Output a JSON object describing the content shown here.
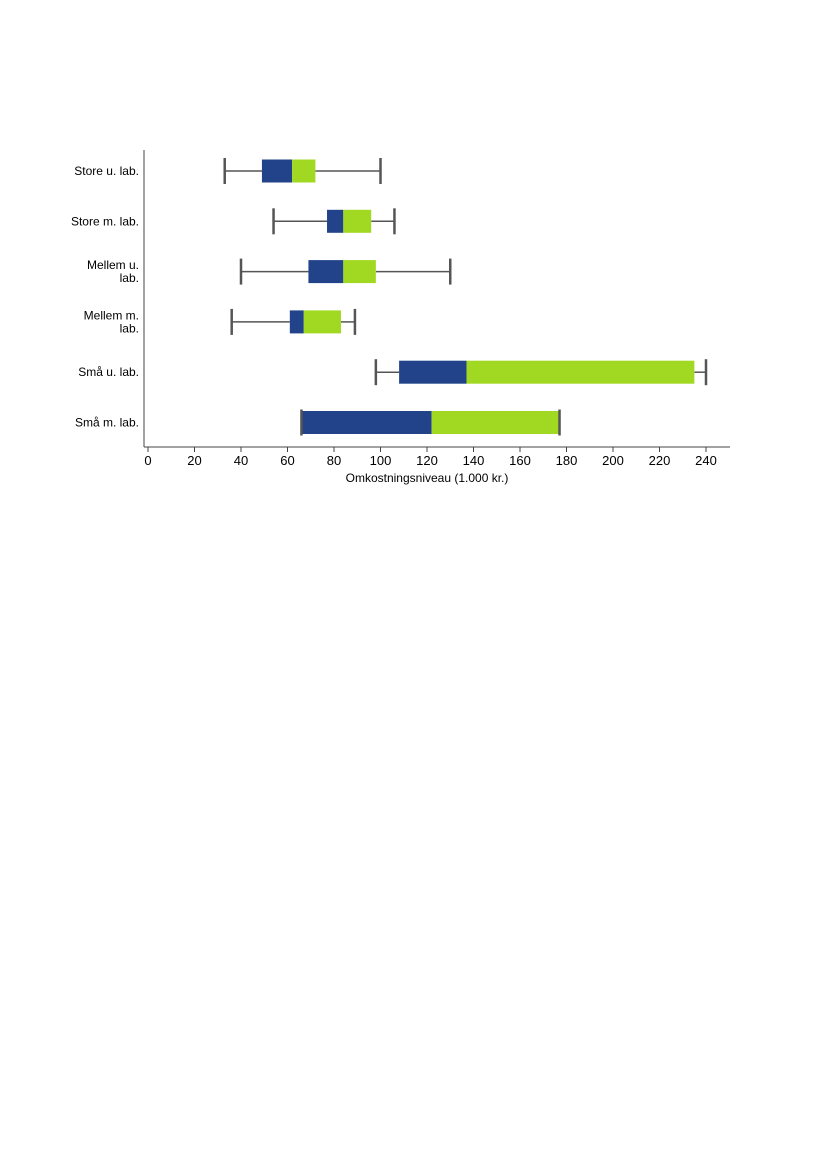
{
  "chart_data": {
    "type": "bar",
    "orientation": "horizontal",
    "style": "box-plot",
    "xlabel": "Omkostningsniveau (1.000 kr.)",
    "xlim": [
      0,
      250
    ],
    "xticks": [
      0,
      20,
      40,
      60,
      80,
      100,
      120,
      140,
      160,
      180,
      200,
      220,
      240
    ],
    "grid": false,
    "colors": {
      "lower": "#22438a",
      "upper": "#a1d922",
      "whisker": "#555555",
      "axis": "#444444"
    },
    "categories": [
      {
        "label_lines": [
          "Store u. lab."
        ],
        "min": 33,
        "q1": 49,
        "median": 62,
        "q3": 72,
        "max": 100
      },
      {
        "label_lines": [
          "Store m. lab."
        ],
        "min": 54,
        "q1": 77,
        "median": 84,
        "q3": 96,
        "max": 106
      },
      {
        "label_lines": [
          "Mellem u.",
          "lab."
        ],
        "min": 40,
        "q1": 69,
        "median": 84,
        "q3": 98,
        "max": 130
      },
      {
        "label_lines": [
          "Mellem m.",
          "lab."
        ],
        "min": 36,
        "q1": 61,
        "median": 67,
        "q3": 83,
        "max": 89
      },
      {
        "label_lines": [
          "Små u. lab."
        ],
        "min": 98,
        "q1": 108,
        "median": 137,
        "q3": 235,
        "max": 240
      },
      {
        "label_lines": [
          "Små m. lab."
        ],
        "min": 66,
        "q1": 66,
        "median": 122,
        "q3": 177,
        "max": 177
      }
    ]
  }
}
